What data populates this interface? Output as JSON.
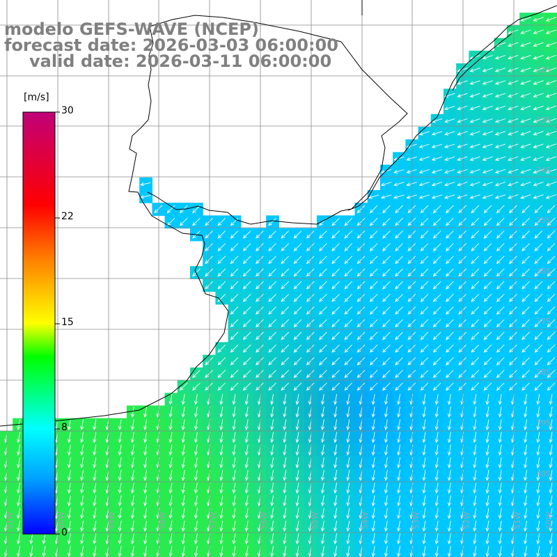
{
  "title": {
    "line1": "modelo GEFS-WAVE (NCEP)",
    "line2": "forecast date: 2026-03-03 06:00:00",
    "line3": "valid date: 2026-03-11 06:00:00"
  },
  "colorbar": {
    "unit": "[m/s]",
    "ticks": [
      "30",
      "22",
      "15",
      "8",
      "0"
    ],
    "colors": [
      "#0000ff",
      "#00b4ff",
      "#00ffff",
      "#00ff00",
      "#ffff00",
      "#ff8000",
      "#ff0000",
      "#c00078"
    ]
  },
  "map": {
    "lat_labels": [
      "32S",
      "33S",
      "34S",
      "35S",
      "36S",
      "37S",
      "38S",
      "39S",
      "40S"
    ],
    "lon_labels": [
      "61W",
      "60W",
      "59W",
      "58W",
      "57W",
      "56W",
      "55W",
      "54W",
      "53W",
      "52W",
      "51W",
      "50W"
    ],
    "colors": {
      "land": "#ffffff",
      "coast": "#000000",
      "grid": "#8a8a8a",
      "arrow": "#ffffff"
    }
  }
}
